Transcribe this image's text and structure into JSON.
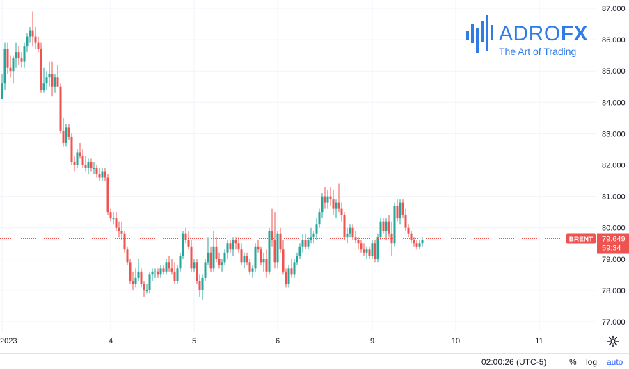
{
  "logo": {
    "name_part1": "ADRO",
    "name_part2": "FX",
    "tagline": "The Art of Trading",
    "color": "#2f7ce6"
  },
  "bottom_bar": {
    "time": "02:00:26 (UTC-5)",
    "percent": "%",
    "log": "log",
    "auto": "auto"
  },
  "settings_icon": "gear-icon",
  "chart_data": {
    "type": "candlestick",
    "symbol": "BRENT",
    "last_price": "79.649",
    "countdown": "59:34",
    "y_ticks": [
      "87.000",
      "86.000",
      "85.000",
      "84.000",
      "83.000",
      "82.000",
      "81.000",
      "80.000",
      "79.000",
      "78.000",
      "77.000"
    ],
    "ylim": [
      76.7,
      87.2
    ],
    "x_ticks": [
      {
        "label": "2023",
        "bar": 0
      },
      {
        "label": "4",
        "bar": 39
      },
      {
        "label": "5",
        "bar": 69
      },
      {
        "label": "6",
        "bar": 99
      },
      {
        "label": "9",
        "bar": 133
      },
      {
        "label": "10",
        "bar": 163
      },
      {
        "label": "11",
        "bar": 193
      }
    ],
    "grid": true,
    "colors": {
      "up": "#26a69a",
      "down": "#ef5350",
      "grid": "#f0f3fa",
      "price_line": "#ef5350"
    },
    "candles": [
      [
        84.1,
        84.9,
        84.1,
        84.6
      ],
      [
        84.6,
        85.9,
        84.4,
        85.7
      ],
      [
        85.7,
        85.9,
        84.9,
        85.1
      ],
      [
        85.1,
        85.5,
        84.8,
        85.0
      ],
      [
        85.0,
        85.5,
        84.6,
        85.4
      ],
      [
        85.4,
        85.9,
        85.1,
        85.6
      ],
      [
        85.6,
        85.8,
        85.2,
        85.4
      ],
      [
        85.4,
        85.6,
        85.1,
        85.3
      ],
      [
        85.3,
        85.9,
        85.1,
        85.8
      ],
      [
        85.8,
        86.2,
        85.6,
        86.1
      ],
      [
        86.1,
        86.4,
        85.9,
        86.3
      ],
      [
        86.3,
        86.9,
        85.8,
        86.1
      ],
      [
        86.1,
        86.4,
        85.7,
        85.9
      ],
      [
        85.9,
        86.1,
        85.6,
        85.7
      ],
      [
        85.7,
        85.9,
        84.3,
        84.4
      ],
      [
        84.4,
        85.1,
        84.3,
        84.6
      ],
      [
        84.6,
        85.0,
        84.4,
        84.8
      ],
      [
        84.8,
        85.3,
        84.5,
        84.9
      ],
      [
        84.9,
        85.3,
        84.2,
        84.5
      ],
      [
        84.5,
        84.9,
        84.3,
        84.8
      ],
      [
        84.8,
        85.2,
        84.5,
        84.5
      ],
      [
        84.5,
        84.6,
        83.0,
        83.1
      ],
      [
        83.1,
        83.5,
        82.6,
        82.7
      ],
      [
        82.7,
        83.3,
        82.6,
        83.2
      ],
      [
        83.2,
        83.3,
        82.8,
        82.9
      ],
      [
        82.9,
        83.0,
        82.0,
        82.1
      ],
      [
        82.1,
        82.3,
        81.8,
        82.0
      ],
      [
        82.0,
        82.5,
        81.9,
        82.4
      ],
      [
        82.4,
        82.7,
        82.2,
        82.3
      ],
      [
        82.3,
        82.5,
        81.9,
        82.0
      ],
      [
        82.0,
        82.3,
        81.8,
        81.9
      ],
      [
        81.9,
        82.2,
        81.7,
        82.1
      ],
      [
        82.1,
        82.2,
        81.8,
        81.9
      ],
      [
        81.9,
        82.1,
        81.7,
        81.9
      ],
      [
        81.9,
        82.0,
        81.6,
        81.7
      ],
      [
        81.7,
        81.9,
        81.5,
        81.6
      ],
      [
        81.6,
        81.9,
        81.5,
        81.8
      ],
      [
        81.8,
        81.9,
        81.5,
        81.6
      ],
      [
        81.6,
        81.7,
        80.4,
        80.5
      ],
      [
        80.5,
        80.6,
        80.2,
        80.3
      ],
      [
        80.3,
        80.5,
        80.1,
        80.3
      ],
      [
        80.3,
        80.5,
        79.9,
        80.0
      ],
      [
        80.0,
        80.2,
        79.7,
        79.9
      ],
      [
        79.9,
        80.2,
        79.6,
        79.8
      ],
      [
        79.8,
        79.9,
        79.2,
        79.3
      ],
      [
        79.3,
        79.4,
        78.8,
        78.9
      ],
      [
        78.9,
        79.0,
        78.2,
        78.3
      ],
      [
        78.3,
        78.6,
        78.0,
        78.2
      ],
      [
        78.2,
        78.7,
        78.1,
        78.4
      ],
      [
        78.4,
        79.0,
        78.3,
        78.6
      ],
      [
        78.6,
        78.7,
        78.1,
        78.2
      ],
      [
        78.2,
        78.3,
        77.8,
        78.0
      ],
      [
        78.0,
        78.2,
        77.9,
        78.0
      ],
      [
        78.0,
        78.6,
        77.9,
        78.5
      ],
      [
        78.5,
        78.7,
        78.3,
        78.6
      ],
      [
        78.6,
        78.7,
        78.4,
        78.6
      ],
      [
        78.6,
        78.7,
        78.4,
        78.5
      ],
      [
        78.5,
        78.8,
        78.4,
        78.7
      ],
      [
        78.7,
        78.8,
        78.5,
        78.6
      ],
      [
        78.6,
        79.0,
        78.5,
        78.9
      ],
      [
        78.9,
        79.1,
        78.6,
        78.7
      ],
      [
        78.7,
        79.0,
        78.5,
        78.6
      ],
      [
        78.6,
        78.9,
        78.2,
        78.3
      ],
      [
        78.3,
        78.8,
        78.2,
        78.7
      ],
      [
        78.7,
        79.2,
        78.6,
        79.1
      ],
      [
        79.1,
        79.9,
        79.0,
        79.8
      ],
      [
        79.8,
        80.0,
        79.5,
        79.6
      ],
      [
        79.6,
        79.9,
        79.3,
        79.4
      ],
      [
        79.4,
        79.6,
        78.6,
        78.7
      ],
      [
        78.7,
        79.0,
        78.6,
        78.9
      ],
      [
        78.9,
        79.0,
        78.2,
        78.3
      ],
      [
        78.3,
        78.5,
        77.8,
        78.0
      ],
      [
        78.0,
        78.5,
        77.7,
        78.4
      ],
      [
        78.4,
        79.0,
        78.3,
        78.9
      ],
      [
        78.9,
        79.7,
        78.8,
        79.2
      ],
      [
        79.2,
        79.4,
        78.6,
        78.7
      ],
      [
        78.7,
        79.9,
        78.6,
        79.4
      ],
      [
        79.4,
        79.7,
        78.9,
        79.0
      ],
      [
        79.0,
        79.2,
        78.7,
        78.8
      ],
      [
        78.8,
        79.0,
        78.6,
        78.9
      ],
      [
        78.9,
        79.3,
        78.8,
        79.2
      ],
      [
        79.2,
        79.6,
        79.0,
        79.5
      ],
      [
        79.5,
        79.6,
        79.2,
        79.3
      ],
      [
        79.3,
        79.7,
        79.1,
        79.6
      ],
      [
        79.6,
        79.7,
        79.3,
        79.5
      ],
      [
        79.5,
        79.7,
        79.2,
        79.3
      ],
      [
        79.3,
        79.5,
        78.8,
        78.9
      ],
      [
        78.9,
        79.2,
        78.7,
        79.1
      ],
      [
        79.1,
        79.2,
        78.8,
        78.9
      ],
      [
        78.9,
        79.0,
        78.5,
        78.6
      ],
      [
        78.6,
        78.8,
        78.4,
        78.7
      ],
      [
        78.7,
        79.5,
        78.6,
        79.4
      ],
      [
        79.4,
        79.6,
        79.2,
        79.3
      ],
      [
        79.3,
        79.4,
        78.8,
        78.9
      ],
      [
        78.9,
        79.2,
        78.6,
        79.0
      ],
      [
        79.0,
        79.3,
        78.4,
        78.6
      ],
      [
        78.6,
        80.0,
        78.5,
        79.9
      ],
      [
        79.9,
        80.6,
        79.4,
        79.6
      ],
      [
        79.6,
        80.5,
        78.7,
        78.9
      ],
      [
        78.9,
        79.9,
        78.7,
        79.8
      ],
      [
        79.8,
        80.0,
        79.2,
        79.3
      ],
      [
        79.3,
        79.6,
        78.5,
        78.6
      ],
      [
        78.6,
        78.7,
        78.1,
        78.2
      ],
      [
        78.2,
        78.8,
        78.1,
        78.7
      ],
      [
        78.7,
        79.0,
        78.4,
        78.5
      ],
      [
        78.5,
        79.0,
        78.4,
        78.9
      ],
      [
        78.9,
        79.2,
        78.8,
        79.1
      ],
      [
        79.1,
        79.5,
        79.0,
        79.4
      ],
      [
        79.4,
        79.8,
        79.2,
        79.6
      ],
      [
        79.6,
        79.8,
        79.3,
        79.4
      ],
      [
        79.4,
        79.7,
        79.3,
        79.6
      ],
      [
        79.6,
        80.0,
        79.5,
        79.7
      ],
      [
        79.7,
        79.9,
        79.5,
        79.8
      ],
      [
        79.8,
        80.3,
        79.6,
        80.1
      ],
      [
        80.1,
        80.6,
        80.0,
        80.5
      ],
      [
        80.5,
        81.1,
        80.3,
        81.0
      ],
      [
        81.0,
        81.3,
        80.6,
        80.8
      ],
      [
        80.8,
        81.2,
        80.6,
        81.0
      ],
      [
        81.0,
        81.3,
        80.7,
        80.9
      ],
      [
        80.9,
        81.2,
        80.4,
        80.6
      ],
      [
        80.6,
        80.9,
        80.3,
        80.8
      ],
      [
        80.8,
        81.4,
        80.5,
        80.6
      ],
      [
        80.6,
        80.8,
        80.2,
        80.4
      ],
      [
        80.4,
        80.5,
        79.6,
        79.7
      ],
      [
        79.7,
        80.0,
        79.5,
        79.8
      ],
      [
        79.8,
        80.1,
        79.7,
        80.0
      ],
      [
        80.0,
        80.1,
        79.6,
        79.7
      ],
      [
        79.7,
        79.9,
        79.5,
        79.6
      ],
      [
        79.6,
        79.7,
        79.3,
        79.5
      ],
      [
        79.5,
        79.6,
        79.2,
        79.3
      ],
      [
        79.3,
        79.5,
        79.1,
        79.2
      ],
      [
        79.2,
        79.4,
        79.0,
        79.3
      ],
      [
        79.3,
        79.4,
        79.0,
        79.1
      ],
      [
        79.1,
        79.6,
        79.0,
        79.5
      ],
      [
        79.5,
        79.6,
        78.9,
        79.0
      ],
      [
        79.0,
        79.8,
        78.9,
        79.7
      ],
      [
        79.7,
        80.3,
        79.6,
        80.2
      ],
      [
        80.2,
        80.3,
        79.8,
        79.9
      ],
      [
        79.9,
        80.3,
        79.6,
        80.2
      ],
      [
        80.2,
        80.4,
        79.7,
        79.8
      ],
      [
        79.8,
        80.2,
        79.1,
        79.5
      ],
      [
        79.5,
        80.8,
        79.4,
        80.7
      ],
      [
        80.7,
        80.9,
        80.2,
        80.3
      ],
      [
        80.3,
        80.9,
        80.1,
        80.8
      ],
      [
        80.8,
        80.9,
        80.3,
        80.4
      ],
      [
        80.4,
        80.6,
        79.9,
        80.0
      ],
      [
        80.0,
        80.1,
        79.7,
        79.8
      ],
      [
        79.8,
        79.9,
        79.5,
        79.6
      ],
      [
        79.6,
        79.7,
        79.4,
        79.5
      ],
      [
        79.5,
        79.6,
        79.3,
        79.4
      ],
      [
        79.4,
        79.6,
        79.3,
        79.5
      ],
      [
        79.5,
        79.7,
        79.4,
        79.6
      ]
    ]
  }
}
